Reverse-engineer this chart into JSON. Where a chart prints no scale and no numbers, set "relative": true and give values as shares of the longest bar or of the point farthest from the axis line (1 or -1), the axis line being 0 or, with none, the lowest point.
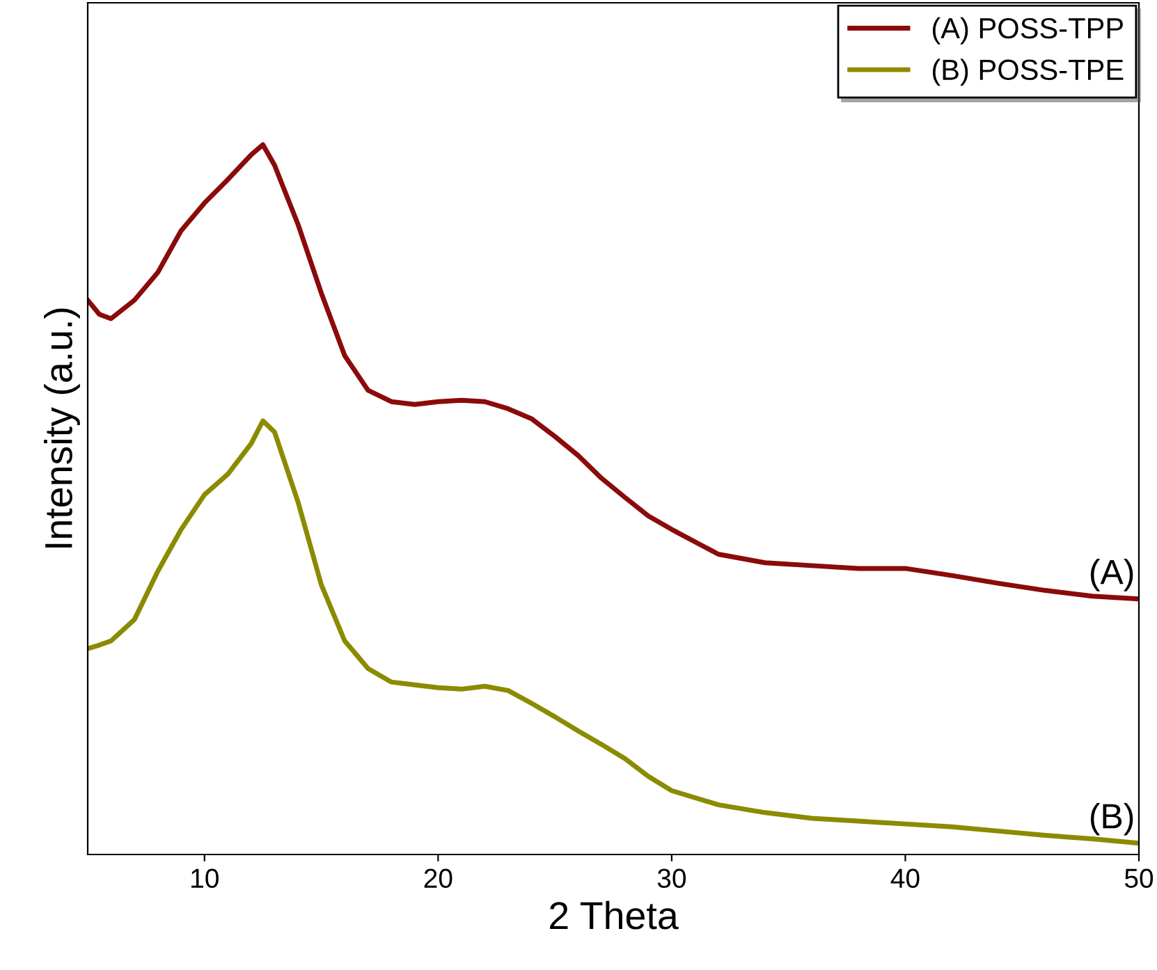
{
  "chart_data": {
    "type": "line",
    "xlabel": "2 Theta",
    "ylabel": "Intensity (a.u.)",
    "relative": true,
    "xlim": [
      5,
      50
    ],
    "xticks": [
      10,
      20,
      30,
      40,
      50
    ],
    "legend": "top right",
    "grid": false,
    "x": [
      5,
      5.5,
      6,
      7,
      8,
      9,
      10,
      11,
      12,
      12.5,
      13,
      14,
      15,
      16,
      17,
      18,
      19,
      20,
      21,
      22,
      23,
      24,
      25,
      26,
      27,
      28,
      29,
      30,
      32,
      34,
      36,
      38,
      40,
      42,
      44,
      46,
      48,
      50
    ],
    "series": [
      {
        "name": "(A) POSS-TPP",
        "color": "#8b0a0a",
        "values": [
          0.781,
          0.761,
          0.755,
          0.781,
          0.82,
          0.879,
          0.918,
          0.951,
          0.986,
          1.0,
          0.971,
          0.888,
          0.791,
          0.703,
          0.654,
          0.638,
          0.634,
          0.638,
          0.64,
          0.638,
          0.628,
          0.614,
          0.589,
          0.562,
          0.53,
          0.503,
          0.477,
          0.458,
          0.423,
          0.411,
          0.407,
          0.403,
          0.403,
          0.393,
          0.382,
          0.372,
          0.364,
          0.36
        ]
      },
      {
        "name": "(B) POSS-TPE",
        "color": "#8b8b00",
        "values": [
          0.29,
          0.295,
          0.301,
          0.331,
          0.399,
          0.458,
          0.507,
          0.536,
          0.579,
          0.611,
          0.595,
          0.497,
          0.38,
          0.301,
          0.262,
          0.243,
          0.239,
          0.235,
          0.233,
          0.237,
          0.231,
          0.213,
          0.194,
          0.174,
          0.155,
          0.135,
          0.11,
          0.09,
          0.07,
          0.059,
          0.051,
          0.047,
          0.043,
          0.039,
          0.033,
          0.027,
          0.022,
          0.016
        ]
      }
    ],
    "annotations": [
      {
        "text": "(A)",
        "x": 50,
        "y": 0.36
      },
      {
        "text": "(B)",
        "x": 50,
        "y": 0.016
      }
    ]
  }
}
